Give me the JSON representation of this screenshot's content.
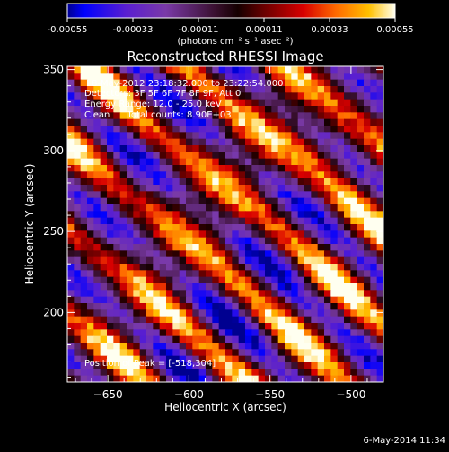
{
  "colorbar": {
    "ticks": [
      -0.00055,
      -0.00033,
      -0.00011,
      0.00011,
      0.00033,
      0.00055
    ],
    "tick_labels": [
      "-0.00055",
      "-0.00033",
      "-0.00011",
      "0.00011",
      "0.00033",
      "0.00055"
    ],
    "units_label": "(photons cm⁻² s⁻¹ asec⁻²)"
  },
  "chart_data": {
    "type": "heatmap",
    "title": "Reconstructed RHESSI Image",
    "xlabel": "Heliocentric X (arcsec)",
    "ylabel": "Heliocentric Y (arcsec)",
    "xlim": [
      -675,
      -480
    ],
    "ylim": [
      157,
      352
    ],
    "x_ticks": [
      -650,
      -600,
      -550,
      -500
    ],
    "y_ticks": [
      200,
      250,
      300,
      350
    ],
    "x_tick_labels": [
      "−650",
      "−600",
      "−550",
      "−500"
    ],
    "y_tick_labels": [
      "200",
      "250",
      "300",
      "350"
    ],
    "value_range": [
      -0.00055,
      0.00055
    ],
    "peak_position": [
      -518,
      304
    ],
    "annotations": [
      "8-May-2012 23:18:32.000 to 23:22:54.000",
      "Detectors: 3F 5F 6F 7F 8F 9F, Att 0",
      "Energy Range: 12.0 - 25.0 keV",
      "Clean      Total counts: 8.90E+03"
    ],
    "peak_label": "Position of Peak = [-518,304]"
  },
  "footer": {
    "timestamp": "6-May-2014 11:34"
  },
  "colors": {
    "background": "#000000",
    "frame": "#ffffff"
  }
}
